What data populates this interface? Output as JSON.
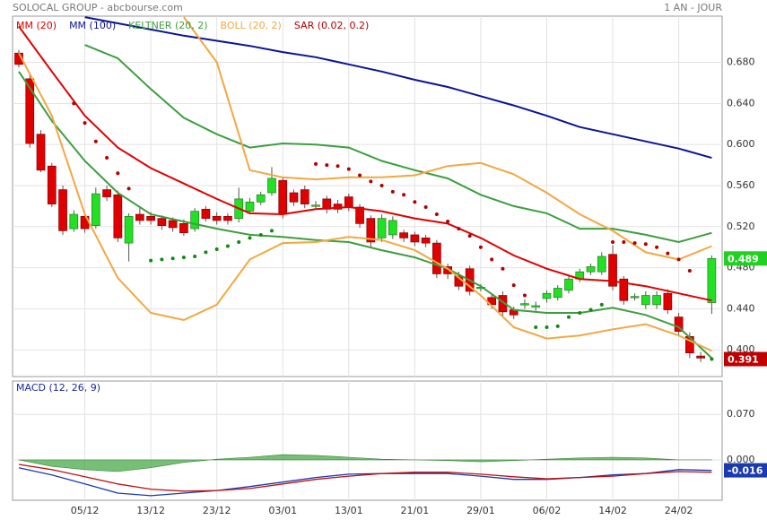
{
  "header": {
    "title": "SOLOCAL GROUP - abcbourse.com",
    "period": "1 AN - JOUR"
  },
  "chart_data": [
    {
      "type": "candlestick",
      "categories": [
        null,
        null,
        null,
        null,
        null,
        null,
        "05/12",
        null,
        null,
        null,
        null,
        null,
        "13/12",
        null,
        null,
        null,
        null,
        null,
        "23/12",
        null,
        null,
        null,
        null,
        null,
        "03/01",
        null,
        null,
        null,
        null,
        null,
        "13/01",
        null,
        null,
        null,
        null,
        null,
        "21/01",
        null,
        null,
        null,
        null,
        null,
        "29/01",
        null,
        null,
        null,
        null,
        null,
        "06/02",
        null,
        null,
        null,
        null,
        null,
        "14/02",
        null,
        null,
        null,
        null,
        null,
        "24/02",
        null,
        null,
        null
      ],
      "ohlc": {
        "open": [
          0.689,
          0.664,
          0.61,
          0.579,
          0.556,
          0.518,
          0.53,
          0.521,
          0.556,
          0.551,
          0.504,
          0.532,
          0.53,
          0.528,
          0.526,
          0.523,
          0.518,
          0.537,
          0.53,
          0.53,
          0.528,
          0.535,
          0.544,
          0.553,
          0.565,
          0.553,
          0.556,
          0.54,
          0.547,
          0.542,
          0.549,
          0.539,
          0.528,
          0.509,
          0.512,
          0.514,
          0.512,
          0.509,
          0.504,
          0.481,
          0.472,
          0.479,
          0.46,
          0.451,
          0.453,
          0.439,
          0.444,
          0.442,
          0.45,
          0.451,
          0.458,
          0.469,
          0.476,
          0.476,
          0.493,
          0.469,
          0.451,
          0.444,
          0.444,
          0.455,
          0.432,
          0.413,
          0.394,
          0.446
        ],
        "high": [
          0.692,
          0.668,
          0.614,
          0.582,
          0.56,
          0.536,
          0.533,
          0.558,
          0.56,
          0.555,
          0.533,
          0.54,
          0.534,
          0.531,
          0.529,
          0.527,
          0.538,
          0.54,
          0.534,
          0.533,
          0.558,
          0.548,
          0.554,
          0.578,
          0.568,
          0.556,
          0.56,
          0.545,
          0.55,
          0.546,
          0.552,
          0.542,
          0.531,
          0.532,
          0.53,
          0.517,
          0.515,
          0.512,
          0.507,
          0.484,
          0.476,
          0.482,
          0.464,
          0.455,
          0.457,
          0.442,
          0.449,
          0.447,
          0.458,
          0.463,
          0.472,
          0.479,
          0.484,
          0.495,
          0.502,
          0.472,
          0.455,
          0.457,
          0.457,
          0.459,
          0.436,
          0.417,
          0.398,
          0.492
        ],
        "low": [
          0.675,
          0.597,
          0.573,
          0.539,
          0.512,
          0.515,
          0.514,
          0.518,
          0.545,
          0.505,
          0.486,
          0.522,
          0.522,
          0.517,
          0.515,
          0.511,
          0.515,
          0.525,
          0.522,
          0.522,
          0.524,
          0.532,
          0.541,
          0.55,
          0.528,
          0.54,
          0.538,
          0.537,
          0.533,
          0.533,
          0.535,
          0.519,
          0.5,
          0.505,
          0.508,
          0.505,
          0.501,
          0.5,
          0.47,
          0.469,
          0.458,
          0.453,
          0.457,
          0.44,
          0.433,
          0.43,
          0.44,
          0.438,
          0.446,
          0.448,
          0.455,
          0.466,
          0.473,
          0.473,
          0.458,
          0.444,
          0.448,
          0.44,
          0.44,
          0.435,
          0.414,
          0.392,
          0.388,
          0.435
        ],
        "close": [
          0.678,
          0.601,
          0.575,
          0.542,
          0.516,
          0.532,
          0.518,
          0.552,
          0.549,
          0.509,
          0.53,
          0.526,
          0.526,
          0.521,
          0.519,
          0.514,
          0.535,
          0.528,
          0.526,
          0.526,
          0.547,
          0.544,
          0.551,
          0.567,
          0.532,
          0.544,
          0.542,
          0.541,
          0.537,
          0.537,
          0.539,
          0.523,
          0.505,
          0.528,
          0.526,
          0.509,
          0.505,
          0.504,
          0.474,
          0.474,
          0.462,
          0.457,
          0.461,
          0.444,
          0.437,
          0.434,
          0.445,
          0.443,
          0.455,
          0.46,
          0.469,
          0.476,
          0.481,
          0.491,
          0.462,
          0.448,
          0.452,
          0.453,
          0.453,
          0.439,
          0.418,
          0.397,
          0.392,
          0.489
        ]
      },
      "up_color": "#22e022",
      "down_color": "#e00000",
      "series": [
        {
          "name": "MM (20)",
          "color": "#e00000",
          "x": [
            0,
            3,
            6,
            9,
            12,
            15,
            18,
            21,
            24,
            27,
            30,
            33,
            36,
            39,
            42,
            45,
            48,
            51,
            54,
            57,
            60,
            63
          ],
          "values": [
            0.715,
            0.671,
            0.628,
            0.597,
            0.577,
            0.562,
            0.547,
            0.533,
            0.532,
            0.537,
            0.539,
            0.535,
            0.528,
            0.523,
            0.509,
            0.492,
            0.479,
            0.469,
            0.467,
            0.462,
            0.455,
            0.448
          ]
        },
        {
          "name": "MM (100)",
          "color": "#0a1496",
          "x": [
            6,
            9,
            12,
            15,
            18,
            21,
            24,
            27,
            30,
            33,
            36,
            39,
            42,
            45,
            48,
            51,
            54,
            57,
            60,
            63
          ],
          "values": [
            0.724,
            0.718,
            0.712,
            0.706,
            0.701,
            0.696,
            0.69,
            0.685,
            0.678,
            0.671,
            0.663,
            0.656,
            0.647,
            0.638,
            0.628,
            0.617,
            0.61,
            0.603,
            0.596,
            0.587
          ]
        },
        {
          "name": "KELTNER (20, 2)",
          "color": "#3d9e3d",
          "x": [
            6,
            9,
            12,
            15,
            18,
            21,
            24,
            27,
            30,
            33,
            36,
            39,
            42,
            45,
            48,
            51,
            54,
            57,
            60,
            63
          ],
          "values": [
            0.697,
            0.684,
            0.654,
            0.626,
            0.61,
            0.597,
            0.601,
            0.6,
            0.597,
            0.584,
            0.575,
            0.567,
            0.551,
            0.54,
            0.533,
            0.518,
            0.518,
            0.512,
            0.505,
            0.514
          ]
        },
        {
          "color": "#3d9e3d",
          "x": [
            0,
            3,
            6,
            9,
            12,
            15,
            18,
            21,
            24,
            27,
            30,
            33,
            36,
            39,
            42,
            45,
            48,
            51,
            54,
            57,
            60,
            63
          ],
          "values": [
            0.671,
            0.623,
            0.584,
            0.553,
            0.532,
            0.525,
            0.518,
            0.512,
            0.51,
            0.507,
            0.505,
            0.497,
            0.49,
            0.479,
            0.462,
            0.439,
            0.436,
            0.436,
            0.441,
            0.434,
            0.422,
            0.392
          ]
        },
        {
          "name": "BOLL (20, 2)",
          "color": "#f2a742",
          "x": [
            15,
            18,
            21,
            24,
            27,
            30,
            33,
            36,
            39,
            42,
            45,
            48,
            51,
            54,
            57,
            60,
            63
          ],
          "values": [
            0.724,
            0.68,
            0.575,
            0.568,
            0.566,
            0.568,
            0.568,
            0.57,
            0.579,
            0.582,
            0.571,
            0.553,
            0.532,
            0.516,
            0.495,
            0.488,
            0.501
          ]
        },
        {
          "color": "#f2a742",
          "x": [
            0,
            3,
            6,
            9,
            12,
            15,
            18,
            21,
            24,
            27,
            30,
            33,
            36,
            39,
            42,
            45,
            48,
            51,
            54,
            57,
            60,
            63
          ],
          "values": [
            0.689,
            0.628,
            0.532,
            0.47,
            0.436,
            0.429,
            0.444,
            0.488,
            0.504,
            0.505,
            0.51,
            0.507,
            0.497,
            0.479,
            0.453,
            0.422,
            0.411,
            0.414,
            0.42,
            0.425,
            0.414,
            0.399
          ]
        }
      ],
      "sar": {
        "name": "SAR (0.02, 0.2)",
        "color": "#b00000",
        "below_color": "#108a10",
        "values": [
          null,
          null,
          null,
          null,
          null,
          0.64,
          0.621,
          0.603,
          0.587,
          0.572,
          0.557,
          null,
          0.487,
          0.488,
          0.489,
          0.49,
          0.491,
          0.495,
          0.498,
          0.501,
          0.505,
          0.509,
          0.512,
          0.516,
          null,
          null,
          null,
          0.581,
          0.58,
          0.579,
          0.576,
          0.57,
          0.564,
          0.56,
          0.554,
          0.551,
          0.544,
          0.539,
          0.532,
          0.525,
          0.518,
          0.511,
          0.5,
          0.488,
          0.479,
          0.463,
          0.453,
          0.422,
          0.422,
          0.423,
          0.432,
          0.436,
          0.439,
          0.444,
          0.505,
          0.505,
          0.504,
          0.503,
          0.5,
          0.494,
          0.488,
          0.477,
          null,
          0.391
        ]
      },
      "price_markers": [
        {
          "value": 0.489,
          "color": "#1fd21f"
        },
        {
          "value": 0.391,
          "color": "#c00000"
        }
      ],
      "ylim": [
        0.374,
        0.725
      ],
      "yticks": [
        {
          "value": 0.4,
          "label": "0.400"
        },
        {
          "value": 0.44,
          "label": "0.440"
        },
        {
          "value": 0.48,
          "label": "0.480"
        },
        {
          "value": 0.52,
          "label": "0.520"
        },
        {
          "value": 0.56,
          "label": "0.560"
        },
        {
          "value": 0.6,
          "label": "0.600"
        },
        {
          "value": 0.64,
          "label": "0.640"
        },
        {
          "value": 0.68,
          "label": "0.680"
        }
      ],
      "grid": true
    },
    {
      "type": "macd",
      "title": "MACD (12, 26, 9)",
      "title_color": "#1a2aa0",
      "histogram": {
        "color": "#4aa84a",
        "x": [
          0,
          3,
          6,
          9,
          12,
          15,
          18,
          21,
          24,
          27,
          30,
          33,
          36,
          39,
          42,
          45,
          48,
          51,
          54,
          57,
          60,
          63
        ],
        "values": [
          0,
          -0.01,
          -0.015,
          -0.018,
          -0.012,
          -0.004,
          0.001,
          0.004,
          0.008,
          0.007,
          0.004,
          0.001,
          0,
          -0.001,
          -0.003,
          -0.001,
          0.001,
          0.003,
          0.004,
          0.003,
          0,
          0
        ]
      },
      "series": [
        {
          "color": "#1a3ab0",
          "x": [
            0,
            3,
            6,
            9,
            12,
            15,
            18,
            21,
            24,
            27,
            30,
            33,
            36,
            39,
            42,
            45,
            48,
            51,
            54,
            57,
            60,
            63
          ],
          "values": [
            -0.012,
            -0.023,
            -0.037,
            -0.051,
            -0.055,
            -0.051,
            -0.047,
            -0.041,
            -0.034,
            -0.027,
            -0.022,
            -0.021,
            -0.021,
            -0.021,
            -0.025,
            -0.03,
            -0.03,
            -0.027,
            -0.023,
            -0.021,
            -0.015,
            -0.016
          ]
        },
        {
          "color": "#c01010",
          "x": [
            0,
            3,
            6,
            9,
            12,
            15,
            18,
            21,
            24,
            27,
            30,
            33,
            36,
            39,
            42,
            45,
            48,
            51,
            54,
            57,
            60,
            63
          ],
          "values": [
            -0.007,
            -0.015,
            -0.026,
            -0.037,
            -0.045,
            -0.048,
            -0.047,
            -0.044,
            -0.037,
            -0.03,
            -0.025,
            -0.021,
            -0.019,
            -0.019,
            -0.022,
            -0.026,
            -0.029,
            -0.027,
            -0.025,
            -0.021,
            -0.018,
            -0.019
          ]
        }
      ],
      "price_markers": [
        {
          "value": -0.016,
          "color": "#1a3ab0"
        }
      ],
      "ylim": [
        -0.062,
        0.121
      ],
      "yticks": [
        {
          "value": 0,
          "label": "0.000"
        },
        {
          "value": 0.07,
          "label": "0.070"
        }
      ],
      "grid": true
    }
  ]
}
